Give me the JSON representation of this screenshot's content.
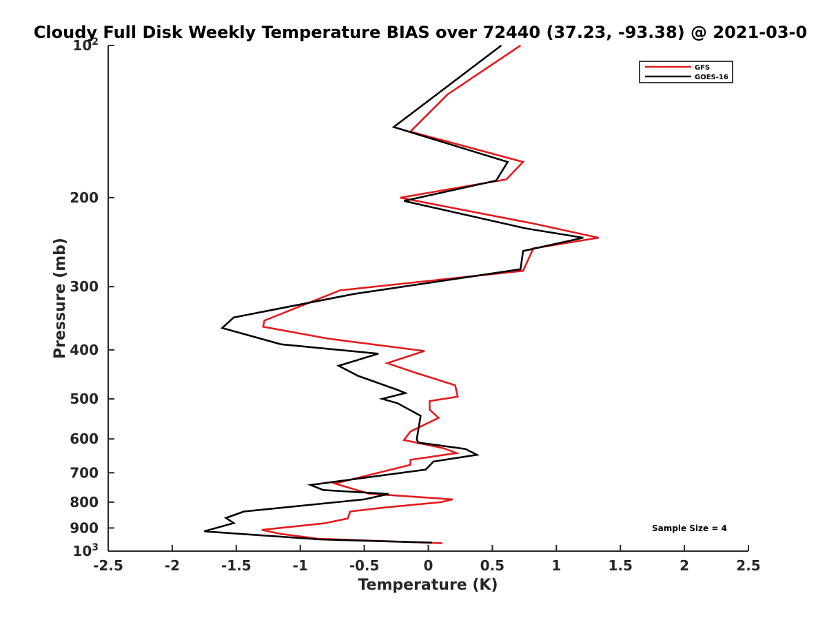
{
  "chart_data": {
    "type": "line",
    "title": "Cloudy Full Disk Weekly Temperature BIAS over 72440 (37.23, -93.38) @ 2021-03-0",
    "xlabel": "Temperature (K)",
    "ylabel": "Pressure (mb)",
    "xlim": [
      -2.5,
      2.5
    ],
    "ylim": [
      100,
      1000
    ],
    "yscale": "log",
    "y_reversed": true,
    "grid": false,
    "legend_position": "top-right",
    "x_ticks": [
      "-2.5",
      "-2",
      "-1.5",
      "-1",
      "-0.5",
      "0",
      "0.5",
      "1",
      "1.5",
      "2",
      "2.5"
    ],
    "y_ticks": [
      {
        "value": 100,
        "base": "10",
        "exp": "2"
      },
      {
        "value": 200,
        "label": "200"
      },
      {
        "value": 300,
        "label": "300"
      },
      {
        "value": 400,
        "label": "400"
      },
      {
        "value": 500,
        "label": "500"
      },
      {
        "value": 600,
        "label": "600"
      },
      {
        "value": 700,
        "label": "700"
      },
      {
        "value": 800,
        "label": "800"
      },
      {
        "value": 900,
        "label": "900"
      },
      {
        "value": 1000,
        "base": "10",
        "exp": "3"
      }
    ],
    "series": [
      {
        "name": "GFS",
        "color": "#e41a1c",
        "points": [
          [
            0.72,
            100
          ],
          [
            0.15,
            125
          ],
          [
            -0.14,
            148
          ],
          [
            0.74,
            170
          ],
          [
            0.61,
            184
          ],
          [
            -0.22,
            200
          ],
          [
            0.82,
            225
          ],
          [
            1.33,
            240
          ],
          [
            0.82,
            252
          ],
          [
            0.74,
            279
          ],
          [
            -0.69,
            305
          ],
          [
            -1.28,
            350
          ],
          [
            -1.29,
            360
          ],
          [
            -0.78,
            380
          ],
          [
            -0.03,
            402
          ],
          [
            -0.32,
            425
          ],
          [
            -0.11,
            443
          ],
          [
            0.21,
            470
          ],
          [
            0.23,
            495
          ],
          [
            0.01,
            505
          ],
          [
            0.01,
            525
          ],
          [
            0.08,
            545
          ],
          [
            -0.14,
            580
          ],
          [
            -0.19,
            603
          ],
          [
            0.12,
            626
          ],
          [
            0.22,
            640
          ],
          [
            -0.14,
            660
          ],
          [
            -0.14,
            675
          ],
          [
            -0.73,
            735
          ],
          [
            -0.46,
            770
          ],
          [
            0.19,
            790
          ],
          [
            0.1,
            800
          ],
          [
            -0.34,
            820
          ],
          [
            -0.61,
            835
          ],
          [
            -0.63,
            862
          ],
          [
            -0.81,
            881
          ],
          [
            -1.3,
            908
          ],
          [
            -1.15,
            925
          ],
          [
            -0.86,
            945
          ],
          [
            0.11,
            965
          ]
        ]
      },
      {
        "name": "GOES-16",
        "color": "#000000",
        "points": [
          [
            0.57,
            100
          ],
          [
            -0.27,
            145
          ],
          [
            0.62,
            170
          ],
          [
            0.53,
            185
          ],
          [
            -0.19,
            203
          ],
          [
            0.76,
            230
          ],
          [
            1.21,
            240
          ],
          [
            0.74,
            255
          ],
          [
            0.72,
            277
          ],
          [
            -0.58,
            310
          ],
          [
            -1.52,
            345
          ],
          [
            -1.61,
            362
          ],
          [
            -1.15,
            390
          ],
          [
            -0.39,
            407
          ],
          [
            -0.7,
            430
          ],
          [
            -0.55,
            450
          ],
          [
            -0.24,
            480
          ],
          [
            -0.18,
            487
          ],
          [
            -0.36,
            500
          ],
          [
            -0.24,
            510
          ],
          [
            -0.06,
            540
          ],
          [
            -0.09,
            600
          ],
          [
            -0.08,
            610
          ],
          [
            0.29,
            628
          ],
          [
            0.38,
            645
          ],
          [
            0.04,
            665
          ],
          [
            -0.02,
            690
          ],
          [
            -0.92,
            740
          ],
          [
            -0.82,
            757
          ],
          [
            -0.31,
            771
          ],
          [
            -0.5,
            790
          ],
          [
            -1.44,
            835
          ],
          [
            -1.58,
            860
          ],
          [
            -1.52,
            880
          ],
          [
            -1.75,
            914
          ],
          [
            -0.85,
            948
          ],
          [
            0.03,
            962
          ]
        ]
      }
    ],
    "annotations": [
      {
        "text": "Sample Size = 4",
        "position": "bottom-right"
      }
    ]
  }
}
